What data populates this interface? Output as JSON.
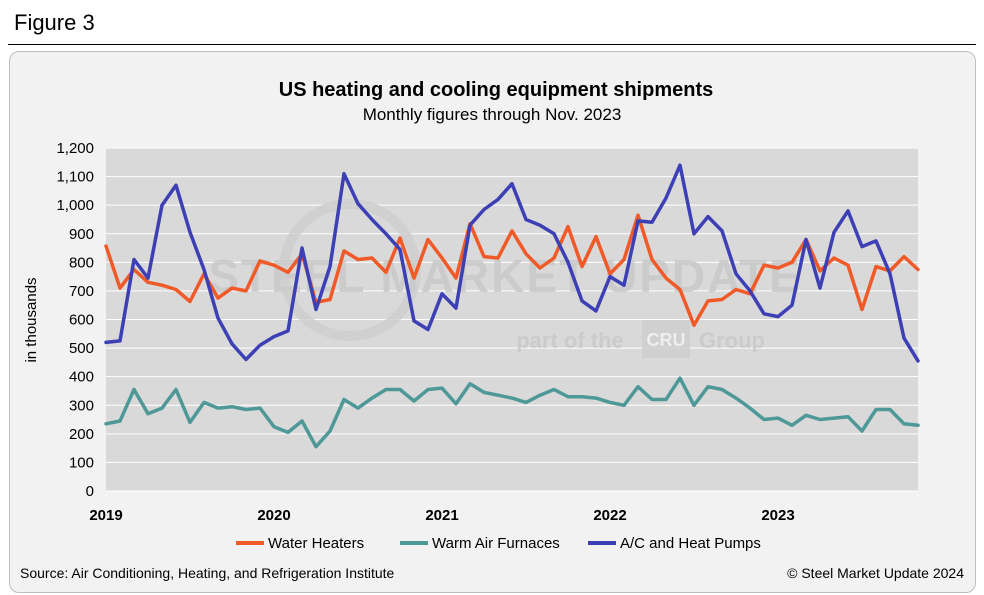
{
  "figure_label": "Figure 3",
  "source_note": "Source: Air Conditioning, Heating, and Refrigeration Institute",
  "copyright_note": "© Steel Market Update 2024",
  "watermark": {
    "brand": "STEEL MARKET UPDATE",
    "tagline_left": "part of the",
    "tagline_mark": "CRU",
    "tagline_right": "Group"
  },
  "colors": {
    "water_heaters": "#f05a28",
    "warm_air_furnaces": "#4e9898",
    "ac_heat_pumps": "#3c40b4",
    "plot_bg": "#d9d9d9",
    "grid": "#ffffff"
  },
  "chart_data": {
    "type": "line",
    "title": "US heating and cooling equipment shipments",
    "subtitle": "Monthly figures through Nov. 2023",
    "ylabel": "in thousands",
    "xlabel": "",
    "ylim": [
      0,
      1200
    ],
    "yticks": [
      "0",
      "100",
      "200",
      "300",
      "400",
      "500",
      "600",
      "700",
      "800",
      "900",
      "1,000",
      "1,100",
      "1,200"
    ],
    "xticks": [
      "2019",
      "2020",
      "2021",
      "2022",
      "2023"
    ],
    "x_start": "Jan 2019",
    "x_end": "Nov 2023",
    "grid": true,
    "legend": "bottom",
    "series": [
      {
        "name": "Water Heaters",
        "values": [
          857,
          710,
          775,
          730,
          720,
          705,
          663,
          760,
          675,
          710,
          700,
          805,
          790,
          765,
          830,
          660,
          670,
          840,
          810,
          815,
          765,
          885,
          745,
          880,
          815,
          745,
          935,
          820,
          815,
          910,
          830,
          780,
          815,
          925,
          785,
          890,
          760,
          810,
          965,
          810,
          745,
          705,
          580,
          665,
          670,
          705,
          690,
          790,
          780,
          800,
          880,
          770,
          815,
          790,
          635,
          785,
          770,
          820,
          775
        ]
      },
      {
        "name": "Warm Air Furnaces",
        "values": [
          235,
          245,
          355,
          270,
          290,
          355,
          240,
          310,
          290,
          295,
          285,
          290,
          225,
          205,
          245,
          155,
          210,
          320,
          290,
          325,
          355,
          355,
          315,
          355,
          360,
          305,
          375,
          345,
          335,
          325,
          310,
          335,
          355,
          330,
          330,
          325,
          310,
          300,
          365,
          320,
          320,
          395,
          300,
          365,
          355,
          325,
          290,
          250,
          255,
          230,
          265,
          250,
          255,
          260,
          210,
          285,
          285,
          235,
          230
        ]
      },
      {
        "name": "A/C and Heat Pumps",
        "values": [
          520,
          525,
          810,
          745,
          1000,
          1070,
          905,
          775,
          605,
          515,
          460,
          510,
          540,
          560,
          850,
          635,
          785,
          1110,
          1005,
          950,
          900,
          845,
          595,
          565,
          690,
          640,
          930,
          985,
          1020,
          1075,
          950,
          930,
          900,
          800,
          665,
          630,
          750,
          720,
          945,
          940,
          1025,
          1140,
          900,
          960,
          910,
          760,
          700,
          620,
          610,
          650,
          880,
          710,
          905,
          980,
          855,
          875,
          760,
          535,
          455
        ]
      }
    ]
  }
}
